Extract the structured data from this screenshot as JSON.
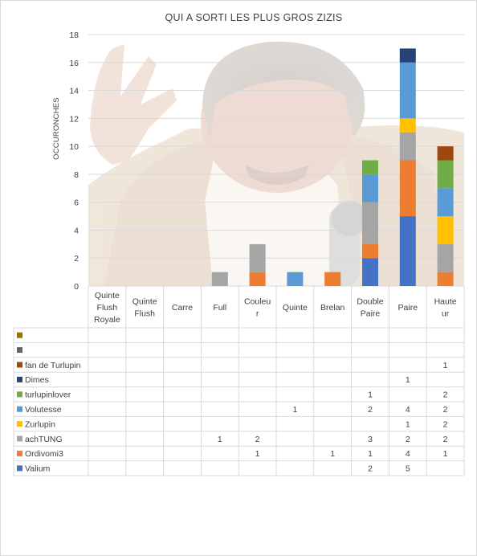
{
  "chart_data": {
    "type": "bar",
    "stacked": true,
    "title": "QUI A SORTI LES PLUS GROS ZIZIS",
    "xlabel": "",
    "ylabel": "OCCURONCHES",
    "ylim": [
      0,
      18
    ],
    "yticks": [
      0,
      2,
      4,
      6,
      8,
      10,
      12,
      14,
      16,
      18
    ],
    "categories": [
      "Quinte Flush Royale",
      "Quinte Flush",
      "Carre",
      "Full",
      "Couleur",
      "Quinte",
      "Brelan",
      "Double Paire",
      "Paire",
      "Hauteur"
    ],
    "category_lines": [
      [
        "Quinte",
        "Flush",
        "Royale"
      ],
      [
        "Quinte",
        "Flush"
      ],
      [
        "Carre"
      ],
      [
        "Full"
      ],
      [
        "Couleu",
        "r"
      ],
      [
        "Quinte"
      ],
      [
        "Brelan"
      ],
      [
        "Double",
        "Paire"
      ],
      [
        "Paire"
      ],
      [
        "Haute",
        "ur"
      ]
    ],
    "series": [
      {
        "name": "Valium",
        "color": "#4472C4",
        "values": [
          null,
          null,
          null,
          null,
          null,
          null,
          null,
          2,
          5,
          null
        ]
      },
      {
        "name": "Ordivomi3",
        "color": "#ED7D31",
        "values": [
          null,
          null,
          null,
          null,
          1,
          null,
          1,
          1,
          4,
          1
        ]
      },
      {
        "name": "achTUNG",
        "color": "#A5A5A5",
        "values": [
          null,
          null,
          null,
          1,
          2,
          null,
          null,
          3,
          2,
          2
        ]
      },
      {
        "name": "Zurlupin",
        "color": "#FFC000",
        "values": [
          null,
          null,
          null,
          null,
          null,
          null,
          null,
          null,
          1,
          2
        ]
      },
      {
        "name": "Volutesse",
        "color": "#5B9BD5",
        "values": [
          null,
          null,
          null,
          null,
          null,
          1,
          null,
          2,
          4,
          2
        ]
      },
      {
        "name": "turlupinlover",
        "color": "#70AD47",
        "values": [
          null,
          null,
          null,
          null,
          null,
          null,
          null,
          1,
          null,
          2
        ]
      },
      {
        "name": "Dimes",
        "color": "#264478",
        "values": [
          null,
          null,
          null,
          null,
          null,
          null,
          null,
          null,
          1,
          null
        ]
      },
      {
        "name": "fan de Turlupin",
        "color": "#9E480E",
        "values": [
          null,
          null,
          null,
          null,
          null,
          null,
          null,
          null,
          null,
          1
        ]
      },
      {
        "name": "",
        "color": "#636363",
        "values": [
          null,
          null,
          null,
          null,
          null,
          null,
          null,
          null,
          null,
          null
        ]
      },
      {
        "name": "",
        "color": "#997300",
        "values": [
          null,
          null,
          null,
          null,
          null,
          null,
          null,
          null,
          null,
          null
        ]
      }
    ],
    "table_row_order": [
      9,
      8,
      7,
      6,
      5,
      4,
      3,
      2,
      1,
      0
    ],
    "background_image": "photo-of-laughing-man-in-beige-suit-with-microphone"
  }
}
